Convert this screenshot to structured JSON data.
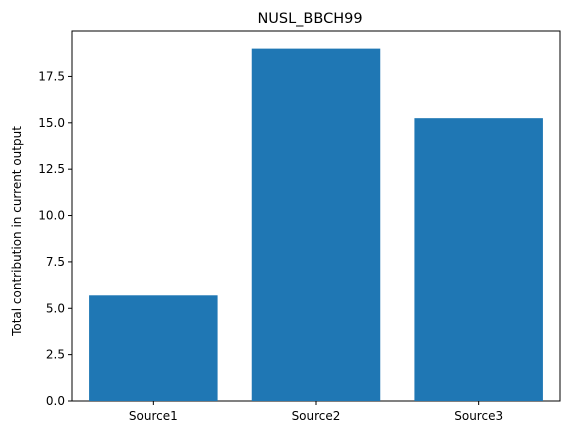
{
  "chart_data": {
    "type": "bar",
    "title": "NUSL_BBCH99",
    "xlabel": "",
    "ylabel": "Total contribution in current output",
    "categories": [
      "Source1",
      "Source2",
      "Source3"
    ],
    "values": [
      5.7,
      19.0,
      15.25
    ],
    "ylim": [
      0,
      19.95
    ],
    "yticks": [
      0.0,
      2.5,
      5.0,
      7.5,
      10.0,
      12.5,
      15.0,
      17.5
    ],
    "ytick_labels": [
      "0.0",
      "2.5",
      "5.0",
      "7.5",
      "10.0",
      "12.5",
      "15.0",
      "17.5"
    ],
    "grid": false,
    "legend": "none",
    "bar_color": "#1f77b4"
  }
}
